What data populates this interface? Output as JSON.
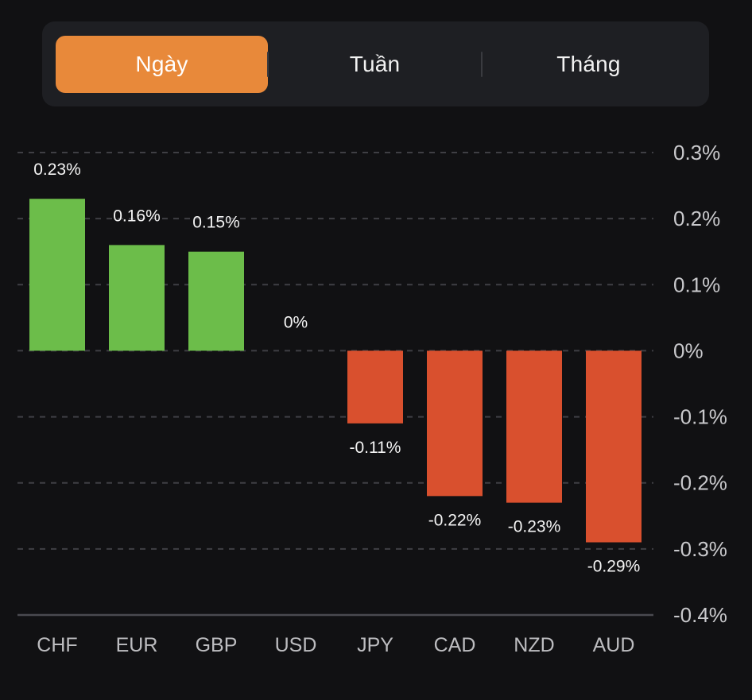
{
  "period_selector": {
    "options": [
      {
        "label": "Ngày",
        "active": true
      },
      {
        "label": "Tuần",
        "active": false
      },
      {
        "label": "Tháng",
        "active": false
      }
    ],
    "active_color": "#E8893A"
  },
  "colors": {
    "positive": "#6CBD4A",
    "negative": "#D9502E",
    "background": "#111113",
    "grid": "#3f3f44"
  },
  "chart_data": {
    "type": "bar",
    "title": "",
    "xlabel": "",
    "ylabel": "",
    "categories": [
      "CHF",
      "EUR",
      "GBP",
      "USD",
      "JPY",
      "CAD",
      "NZD",
      "AUD"
    ],
    "values": [
      0.23,
      0.16,
      0.15,
      0,
      -0.11,
      -0.22,
      -0.23,
      -0.29
    ],
    "value_labels": [
      "0.23%",
      "0.16%",
      "0.15%",
      "0%",
      "-0.11%",
      "-0.22%",
      "-0.23%",
      "-0.29%"
    ],
    "unit": "%",
    "ylim": [
      -0.4,
      0.3
    ],
    "yticks": [
      0.3,
      0.2,
      0.1,
      0,
      -0.1,
      -0.2,
      -0.3,
      -0.4
    ],
    "ytick_labels": [
      "0.3%",
      "0.2%",
      "0.1%",
      "0%",
      "-0.1%",
      "-0.2%",
      "-0.3%",
      "-0.4%"
    ],
    "y_axis_position": "right",
    "grid": true,
    "grid_style": "dashed",
    "legend": null
  }
}
